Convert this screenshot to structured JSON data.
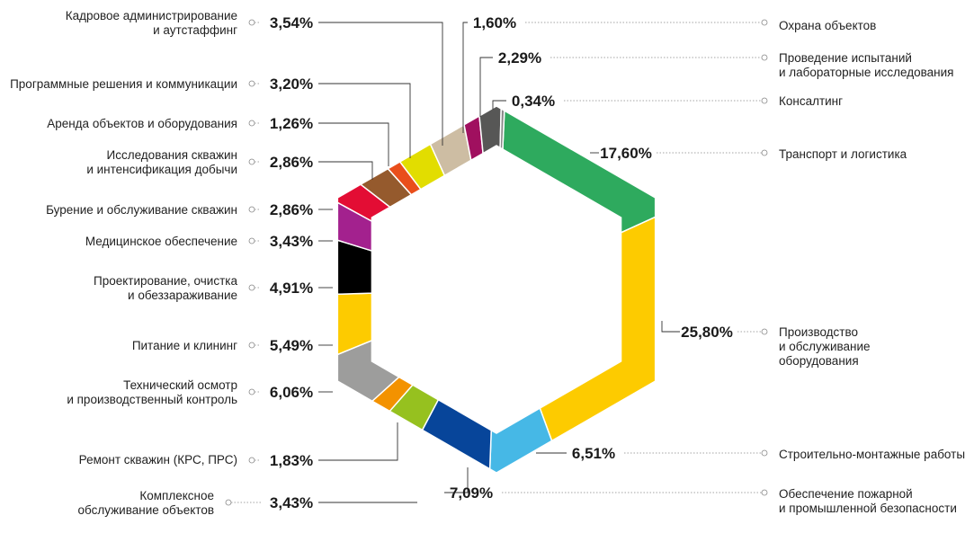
{
  "chart_data": {
    "type": "pie",
    "shape": "hexagonal donut",
    "unit": "%",
    "series": [
      {
        "label": [
          "Транспорт и логистика"
        ],
        "value": 17.6,
        "value_text": "17,60%",
        "color": "#2eaa5e"
      },
      {
        "label": [
          "Производство",
          "и обслуживание",
          "оборудования"
        ],
        "value": 25.8,
        "value_text": "25,80%",
        "color": "#fdcb00"
      },
      {
        "label": [
          "Строительно-монтажные работы"
        ],
        "value": 6.51,
        "value_text": "6,51%",
        "color": "#46b8e6"
      },
      {
        "label": [
          "Обеспечение пожарной",
          "и промышленной безопасности"
        ],
        "value": 7.09,
        "value_text": "7,09%",
        "color": "#07459a"
      },
      {
        "label": [
          "Комплексное",
          "обслуживание объектов"
        ],
        "value": 3.43,
        "value_text": "3,43%",
        "color": "#96c11f"
      },
      {
        "label": [
          "Ремонт скважин (КРС, ПРС)"
        ],
        "value": 1.83,
        "value_text": "1,83%",
        "color": "#f39200"
      },
      {
        "label": [
          "Технический осмотр",
          "и производственный контроль"
        ],
        "value": 6.06,
        "value_text": "6,06%",
        "color": "#9d9d9c"
      },
      {
        "label": [
          "Питание и клининг"
        ],
        "value": 5.49,
        "value_text": "5,49%",
        "color": "#fdcb00"
      },
      {
        "label": [
          "Проектирование, очистка",
          "и обеззараживание"
        ],
        "value": 4.91,
        "value_text": "4,91%",
        "color": "#000000"
      },
      {
        "label": [
          "Медицинское обеспечение"
        ],
        "value": 3.43,
        "value_text": "3,43%",
        "color": "#a3218e"
      },
      {
        "label": [
          "Бурение и обслуживание скважин"
        ],
        "value": 2.86,
        "value_text": "2,86%",
        "color": "#e30d34"
      },
      {
        "label": [
          "Исследования скважин",
          "и интенсификация добычи"
        ],
        "value": 2.86,
        "value_text": "2,86%",
        "color": "#955a2d"
      },
      {
        "label": [
          "Аренда объектов и оборудования"
        ],
        "value": 1.26,
        "value_text": "1,26%",
        "color": "#e94e1b"
      },
      {
        "label": [
          "Программные решения и коммуникации"
        ],
        "value": 3.2,
        "value_text": "3,20%",
        "color": "#e2dd00"
      },
      {
        "label": [
          "Кадровое администрирование",
          "и аутстаффинг"
        ],
        "value": 3.54,
        "value_text": "3,54%",
        "color": "#cdbda3"
      },
      {
        "label": [
          "Охрана объектов"
        ],
        "value": 1.6,
        "value_text": "1,60%",
        "color": "#a0105f"
      },
      {
        "label": [
          "Проведение испытаний",
          "и лабораторные исследования"
        ],
        "value": 2.29,
        "value_text": "2,29%",
        "color": "#575756"
      },
      {
        "label": [
          "Консалтинг"
        ],
        "value": 0.34,
        "value_text": "0,34%",
        "color": "#8a8a8a"
      }
    ]
  }
}
